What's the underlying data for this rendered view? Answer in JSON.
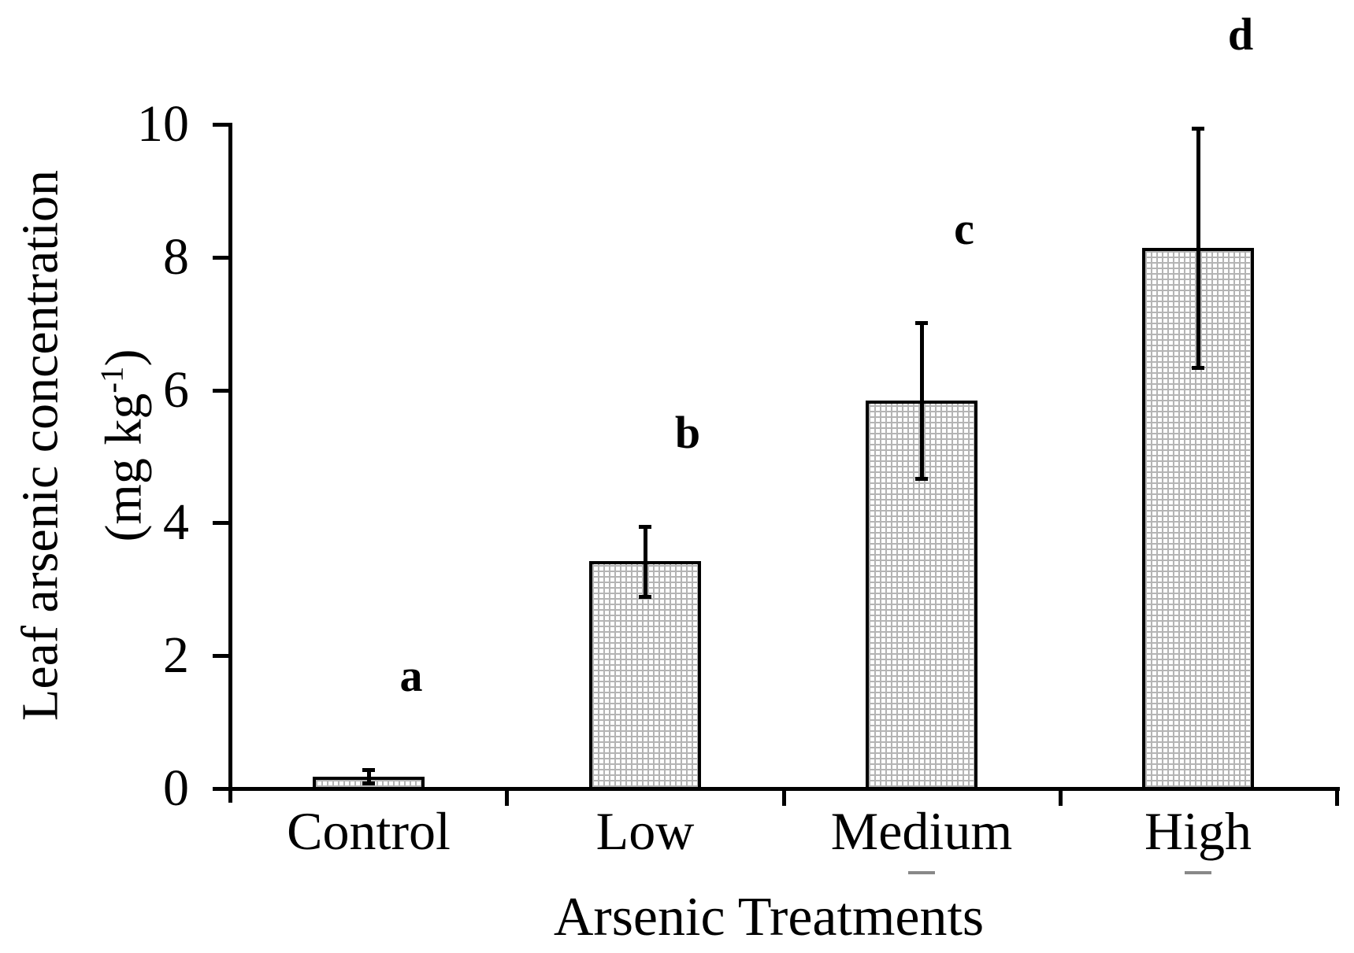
{
  "colors": {
    "background": "#ffffff",
    "ink": "#000000",
    "hatch": "#b4b4b4",
    "underline_dash": "#888888"
  },
  "chart_data": {
    "type": "bar",
    "title": "",
    "xlabel": "Arsenic Treatments",
    "ylabel": "Leaf arsenic concentration (mg kg-1)",
    "ylabel_line1": "Leaf arsenic concentration",
    "unit_prefix": "(mg kg",
    "unit_sup": "-1",
    "unit_suffix": ")",
    "categories": [
      "Control",
      "Low",
      "Medium",
      "High"
    ],
    "values": [
      0.18,
      3.42,
      5.84,
      8.14
    ],
    "errors": [
      0.1,
      0.53,
      1.17,
      1.8
    ],
    "sig_letters": [
      "a",
      "b",
      "c",
      "d"
    ],
    "y_ticks": [
      0,
      2,
      4,
      6,
      8,
      10
    ],
    "ylim": [
      0,
      10
    ],
    "grid": false,
    "legend": "none",
    "bar_style": "white fill, fine gray square cross-hatch pattern, black outline",
    "label_underline_marks": [
      false,
      false,
      true,
      true
    ]
  }
}
